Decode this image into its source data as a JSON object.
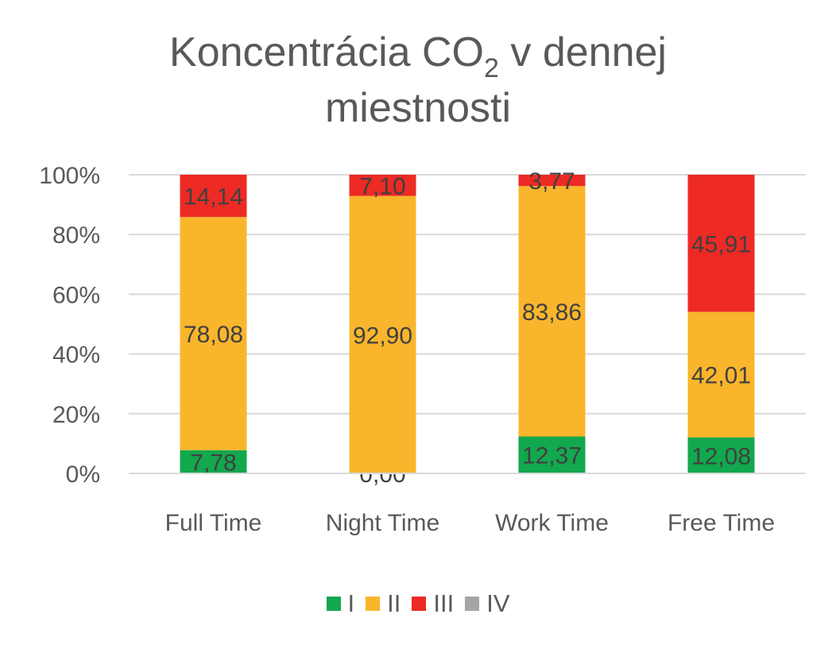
{
  "chart_data": {
    "type": "bar",
    "stacked": true,
    "percent_stacked": true,
    "title": {
      "main": "Koncentrácia CO",
      "subscript": "2",
      "line1_rest": " v dennej",
      "line2": "miestnosti"
    },
    "categories": [
      "Full Time",
      "Night Time",
      "Work Time",
      "Free Time"
    ],
    "series": [
      {
        "name": "I",
        "color": "#12a84e",
        "values": [
          7.78,
          0.0,
          12.37,
          12.08
        ],
        "labels": [
          "7,78",
          "0,00",
          "12,37",
          "12,08"
        ]
      },
      {
        "name": "II",
        "color": "#f9b52c",
        "values": [
          78.08,
          92.9,
          83.86,
          42.01
        ],
        "labels": [
          "78,08",
          "92,90",
          "83,86",
          "42,01"
        ]
      },
      {
        "name": "III",
        "color": "#ed2a24",
        "values": [
          14.14,
          7.1,
          3.77,
          45.91
        ],
        "labels": [
          "14,14",
          "7,10",
          "3,77",
          "45,91"
        ]
      },
      {
        "name": "IV",
        "color": "#a5a5a5",
        "values": [
          0,
          0,
          0,
          0
        ],
        "labels": [
          "",
          "",
          "",
          ""
        ]
      }
    ],
    "y_ticks": [
      "0%",
      "20%",
      "40%",
      "60%",
      "80%",
      "100%"
    ],
    "ylim": [
      0,
      100
    ],
    "grid": true,
    "legend_position": "bottom",
    "label_color": "#404040"
  }
}
